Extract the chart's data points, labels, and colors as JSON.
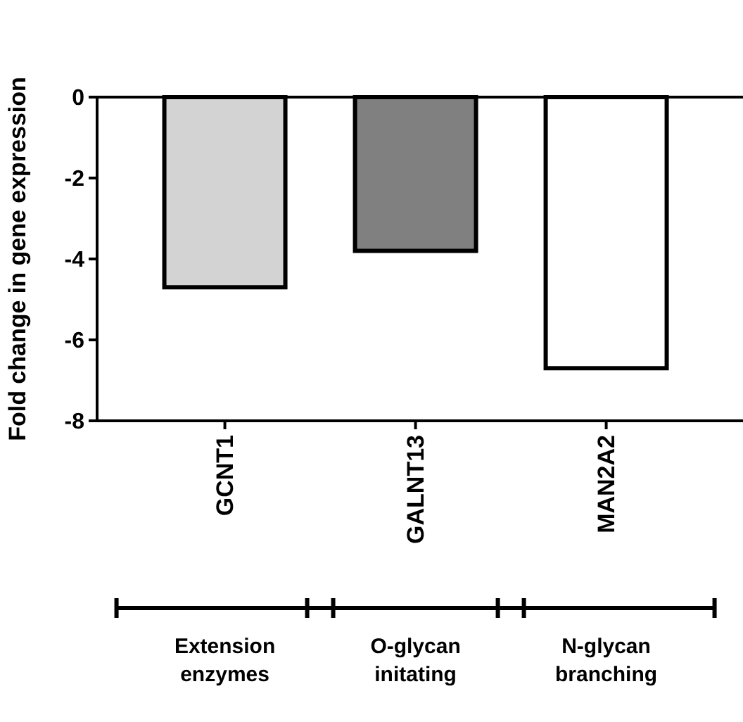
{
  "chart_data": {
    "type": "bar",
    "ylabel": "Fold change in gene expression",
    "categories": [
      "GCNT1",
      "GALNT13",
      "MAN2A2"
    ],
    "values": [
      -4.7,
      -3.8,
      -6.7
    ],
    "colors": [
      "#d3d3d3",
      "#808080",
      "#ffffff"
    ],
    "ylim": [
      -8,
      0
    ],
    "yticks": [
      -8,
      -6,
      -4,
      -2,
      0
    ],
    "annotations": [
      "Extension enzymes",
      "O-glycan initating",
      "N-glycan branching"
    ]
  }
}
